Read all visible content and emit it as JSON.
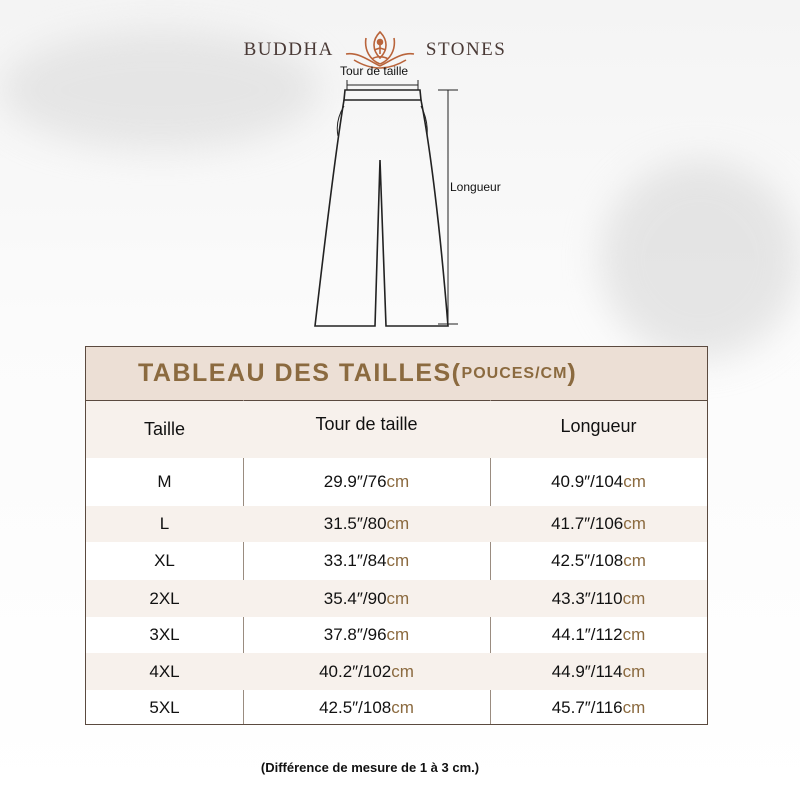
{
  "brand": {
    "left": "BUDDHA",
    "right": "STONES",
    "logo_icon": "lotus-meditation-icon",
    "color": "#b9643b"
  },
  "diagram": {
    "waist_label": "Tour de taille",
    "length_label": "Longueur"
  },
  "table": {
    "title": "TABLEAU DES TAILLES(",
    "title_units": "POUCES/CM",
    "title_close": ")",
    "headers": [
      "Taille",
      "Tour de taille",
      "Longueur"
    ],
    "unit": "cm",
    "rows": [
      {
        "size": "M",
        "waist": "29.9″/76",
        "length": "40.9″/104"
      },
      {
        "size": "L",
        "waist": "31.5″/80",
        "length": "41.7″/106"
      },
      {
        "size": "XL",
        "waist": "33.1″/84",
        "length": "42.5″/108"
      },
      {
        "size": "2XL",
        "waist": "35.4″/90",
        "length": "43.3″/110"
      },
      {
        "size": "3XL",
        "waist": "37.8″/96",
        "length": "44.1″/112"
      },
      {
        "size": "4XL",
        "waist": "40.2″/102",
        "length": "44.9″/114"
      },
      {
        "size": "5XL",
        "waist": "42.5″/108",
        "length": "45.7″/116"
      }
    ]
  },
  "note": "(Différence de mesure de 1 à 3 cm.)",
  "colors": {
    "accent": "#8b6a3f",
    "band": "#ecdfd5",
    "tint": "#f7f1ec"
  }
}
